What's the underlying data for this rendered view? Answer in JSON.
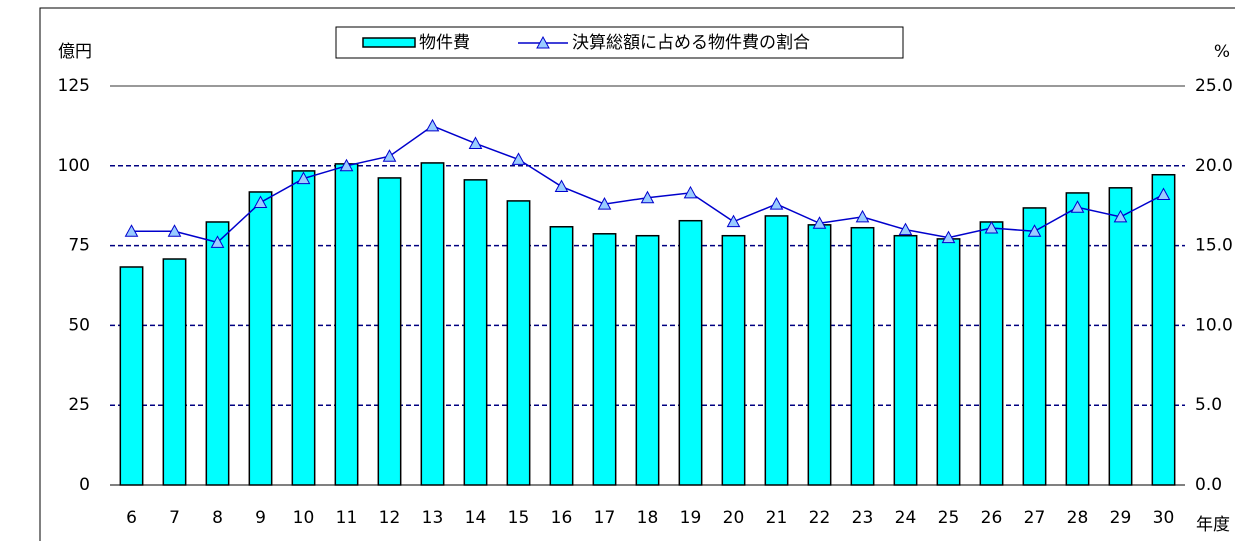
{
  "chart_data": {
    "type": "bar-line",
    "y_label": "億円",
    "y2_label": "%",
    "x_label": "年度",
    "categories": [
      "6",
      "7",
      "8",
      "9",
      "10",
      "11",
      "12",
      "13",
      "14",
      "15",
      "16",
      "17",
      "18",
      "19",
      "20",
      "21",
      "22",
      "23",
      "24",
      "25",
      "26",
      "27",
      "28",
      "29",
      "30"
    ],
    "series": [
      {
        "name": "物件費",
        "type": "bar",
        "color": "#00ffff",
        "values": [
          68.3,
          70.8,
          82.4,
          91.8,
          98.4,
          100.6,
          96.2,
          100.9,
          95.6,
          89,
          80.9,
          78.7,
          78.1,
          82.8,
          78.1,
          84.3,
          81.5,
          80.6,
          78.1,
          77.1,
          82.4,
          86.8,
          91.5,
          93.1,
          97.2
        ]
      },
      {
        "name": "決算総額に占める物件費の割合",
        "type": "line",
        "axis": "y2",
        "color": "#0000cc",
        "marker_color": "#99ccff",
        "values": [
          15.9,
          15.9,
          15.2,
          17.7,
          19.2,
          20.0,
          20.6,
          22.5,
          21.4,
          20.4,
          18.7,
          17.6,
          18.0,
          18.3,
          16.5,
          17.6,
          16.4,
          16.8,
          16.0,
          15.5,
          16.1,
          15.9,
          17.4,
          16.8,
          18.2
        ]
      }
    ],
    "ylim": [
      0,
      125
    ],
    "yticks": [
      0,
      25,
      50,
      75,
      100,
      125
    ],
    "y2lim": [
      0,
      25
    ],
    "y2ticks": [
      {
        "value": 0,
        "label": "0.0"
      },
      {
        "value": 5,
        "label": "5.0"
      },
      {
        "value": 10,
        "label": "10.0"
      },
      {
        "value": 15,
        "label": "15.0"
      },
      {
        "value": 20,
        "label": "20.0"
      },
      {
        "value": 25,
        "label": "25.0"
      }
    ],
    "grid": true
  }
}
